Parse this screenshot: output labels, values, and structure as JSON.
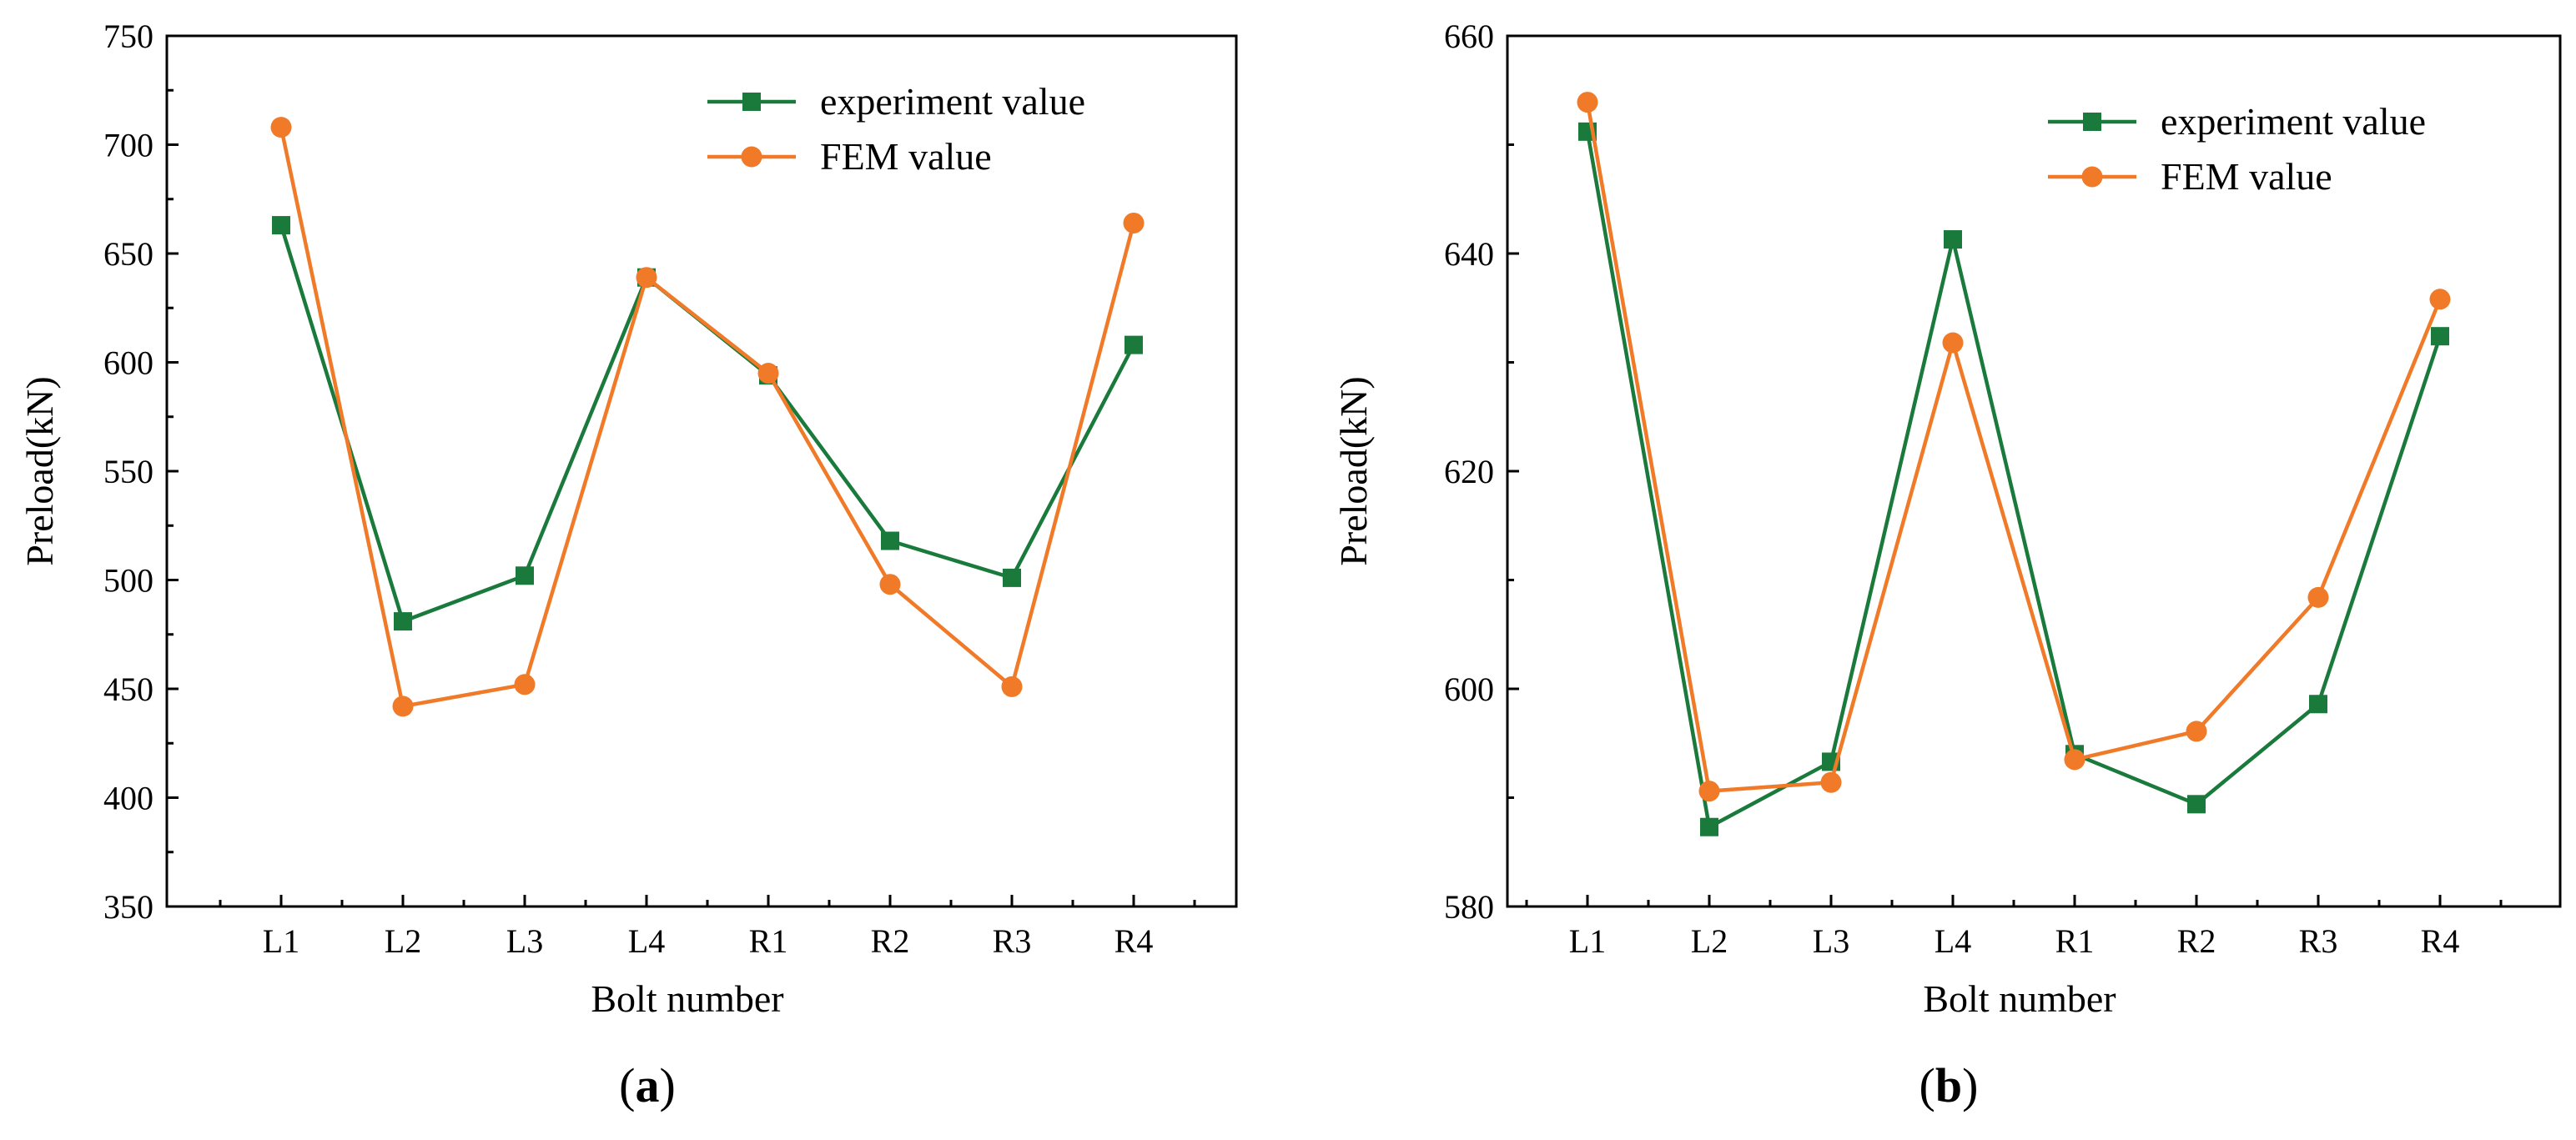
{
  "chart_data": [
    {
      "type": "line",
      "panel_label": "a",
      "xlabel": "Bolt number",
      "ylabel": "Preload(kN)",
      "categories": [
        "L1",
        "L2",
        "L3",
        "L4",
        "R1",
        "R2",
        "R3",
        "R4"
      ],
      "ylim": [
        350,
        750
      ],
      "yticks": [
        350,
        400,
        450,
        500,
        550,
        600,
        650,
        700,
        750
      ],
      "legend_position": "top-right",
      "series": [
        {
          "name": "experiment value",
          "marker": "square",
          "color": "#1a7a3c",
          "values": [
            663,
            481,
            502,
            639,
            594,
            518,
            501,
            608
          ]
        },
        {
          "name": "FEM value",
          "marker": "circle",
          "color": "#f07a28",
          "values": [
            708,
            442,
            452,
            639,
            595,
            498,
            451,
            664
          ]
        }
      ]
    },
    {
      "type": "line",
      "panel_label": "b",
      "xlabel": "Bolt number",
      "ylabel": "Preload(kN)",
      "categories": [
        "L1",
        "L2",
        "L3",
        "L4",
        "R1",
        "R2",
        "R3",
        "R4"
      ],
      "ylim": [
        580,
        660
      ],
      "yticks": [
        580,
        600,
        620,
        640,
        660
      ],
      "legend_position": "top-right",
      "series": [
        {
          "name": "experiment value",
          "marker": "square",
          "color": "#1a7a3c",
          "values": [
            651.2,
            587.3,
            593.3,
            641.3,
            594,
            589.4,
            598.6,
            632.4
          ]
        },
        {
          "name": "FEM value",
          "marker": "circle",
          "color": "#f07a28",
          "values": [
            653.9,
            590.6,
            591.4,
            631.8,
            593.5,
            596.1,
            608.4,
            635.8
          ]
        }
      ]
    }
  ]
}
